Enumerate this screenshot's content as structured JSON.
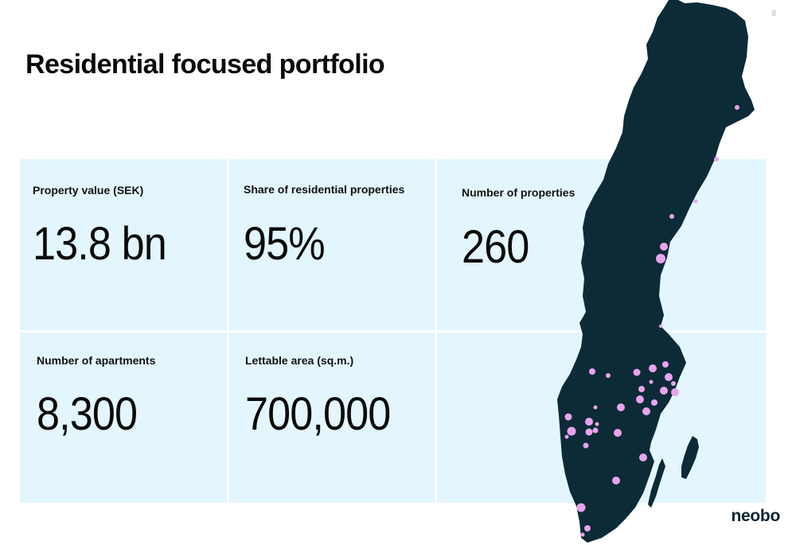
{
  "slide": {
    "page_number": "8",
    "title": "Residential focused portfolio",
    "logo": "neobo"
  },
  "metrics": [
    {
      "label": "Property value (SEK)",
      "value": "13.8 bn"
    },
    {
      "label": "Share of residential properties",
      "value": "95%"
    },
    {
      "label": "Number of properties",
      "value": "260"
    },
    {
      "label": "Number of apartments",
      "value": "8,300"
    },
    {
      "label": "Lettable area (sq.m.)",
      "value": "700,000"
    }
  ],
  "colors": {
    "card_background": "#e3f6fd",
    "map_fill": "#0d2a37",
    "location_marker": "#e7a4ec"
  },
  "map": {
    "region": "Sweden",
    "marker_icon": "location-dot-icon"
  }
}
